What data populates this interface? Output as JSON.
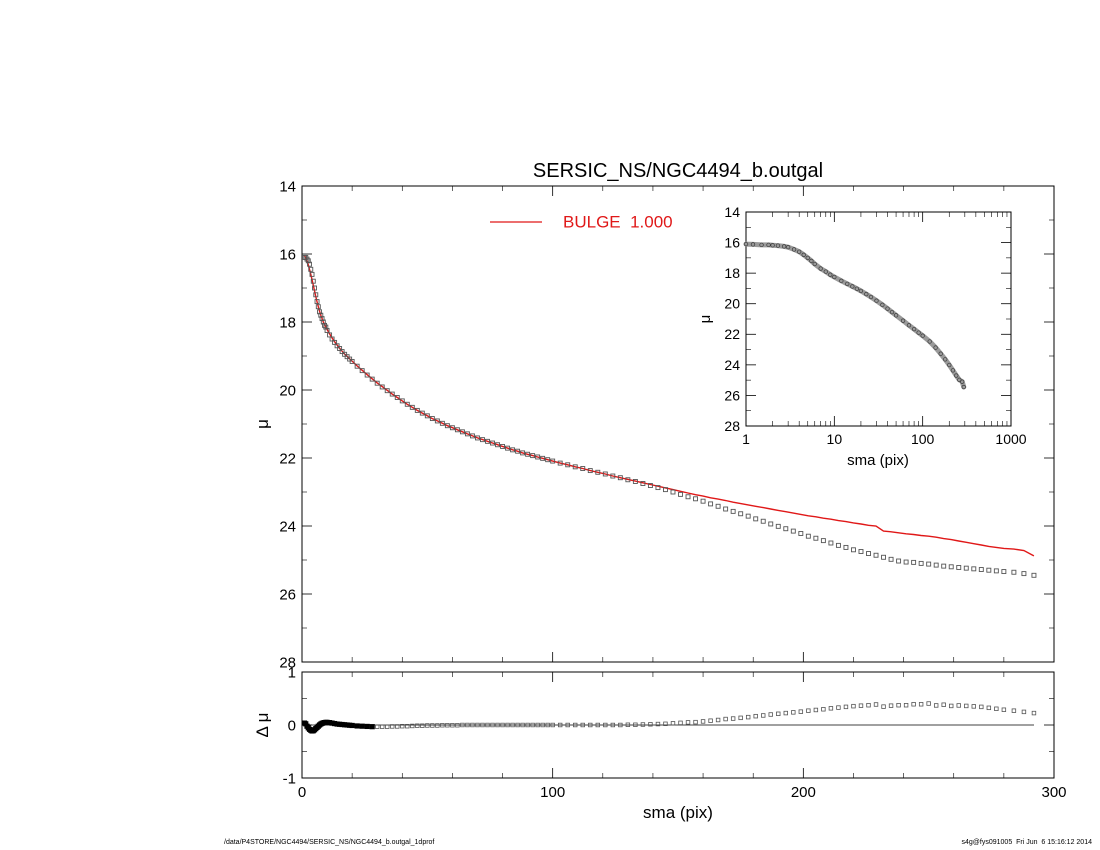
{
  "footer": {
    "left": "/data/P4STORE/NGC4494/SERSIC_NS/NGC4494_b.outgal_1dprof",
    "right": "s4g@fys091005  Fri Jun  6 15:16:12 2014"
  },
  "colors": {
    "model": "#e01818",
    "data": "#555555",
    "axis": "#000000"
  },
  "chart_data": [
    {
      "name": "main-profile",
      "type": "scatter",
      "title": "SERSIC_NS/NGC4494_b.outgal",
      "xlabel": "",
      "ylabel": "μ",
      "xlim": [
        0,
        300
      ],
      "ylim": [
        28,
        14
      ],
      "y_inverted": true,
      "xticks": [
        0,
        100,
        200,
        300
      ],
      "yticks": [
        14,
        16,
        18,
        20,
        22,
        24,
        26,
        28
      ],
      "xtick_labels": [
        "",
        "",
        "",
        ""
      ],
      "ytick_labels": [
        "14",
        "16",
        "18",
        "20",
        "22",
        "24",
        "26",
        "28"
      ],
      "legend": {
        "position": "top-center",
        "label": "BULGE  1.000",
        "color": "#e01818"
      },
      "series": [
        {
          "role": "data",
          "marker": "square",
          "x": [
            1,
            1.5,
            2,
            2.5,
            3,
            3.5,
            4,
            4.5,
            5,
            5.5,
            6,
            6.5,
            7,
            7.5,
            8,
            8.5,
            9,
            9.5,
            10,
            11,
            12,
            13,
            14,
            15,
            16,
            17,
            18,
            19,
            20,
            22,
            24,
            26,
            28,
            30,
            32,
            34,
            36,
            38,
            40,
            42,
            44,
            46,
            48,
            50,
            52,
            54,
            56,
            58,
            60,
            62,
            64,
            66,
            68,
            70,
            72,
            74,
            76,
            78,
            80,
            82,
            84,
            86,
            88,
            90,
            92,
            94,
            96,
            98,
            100,
            103,
            106,
            109,
            112,
            115,
            118,
            121,
            124,
            127,
            130,
            133,
            136,
            139,
            142,
            145,
            148,
            151,
            154,
            157,
            160,
            163,
            166,
            169,
            172,
            175,
            178,
            181,
            184,
            187,
            190,
            193,
            196,
            199,
            202,
            205,
            208,
            211,
            214,
            217,
            220,
            223,
            226,
            229,
            232,
            235,
            238,
            241,
            244,
            247,
            250,
            253,
            256,
            259,
            262,
            265,
            268,
            271,
            274,
            277,
            280,
            284,
            288,
            292
          ],
          "y": [
            16.1,
            16.1,
            16.15,
            16.2,
            16.3,
            16.45,
            16.6,
            16.8,
            17.0,
            17.2,
            17.4,
            17.55,
            17.7,
            17.8,
            17.9,
            18.0,
            18.1,
            18.15,
            18.25,
            18.38,
            18.5,
            18.6,
            18.7,
            18.78,
            18.87,
            18.95,
            19.02,
            19.09,
            19.16,
            19.3,
            19.43,
            19.56,
            19.68,
            19.8,
            19.91,
            20.02,
            20.12,
            20.22,
            20.32,
            20.42,
            20.51,
            20.6,
            20.68,
            20.76,
            20.84,
            20.91,
            20.98,
            21.05,
            21.11,
            21.17,
            21.23,
            21.29,
            21.35,
            21.41,
            21.46,
            21.51,
            21.56,
            21.61,
            21.66,
            21.71,
            21.76,
            21.8,
            21.85,
            21.89,
            21.93,
            21.97,
            22.01,
            22.05,
            22.09,
            22.15,
            22.2,
            22.26,
            22.31,
            22.37,
            22.42,
            22.47,
            22.53,
            22.58,
            22.64,
            22.69,
            22.75,
            22.81,
            22.87,
            22.93,
            23.0,
            23.07,
            23.14,
            23.2,
            23.27,
            23.35,
            23.42,
            23.5,
            23.57,
            23.64,
            23.71,
            23.79,
            23.86,
            23.94,
            24.01,
            24.08,
            24.15,
            24.22,
            24.3,
            24.36,
            24.43,
            24.5,
            24.57,
            24.63,
            24.7,
            24.75,
            24.81,
            24.86,
            24.92,
            24.98,
            25.03,
            25.06,
            25.07,
            25.1,
            25.12,
            25.15,
            25.18,
            25.2,
            25.22,
            25.24,
            25.26,
            25.28,
            25.3,
            25.32,
            25.34,
            25.36,
            25.4,
            25.45
          ]
        },
        {
          "role": "model",
          "marker": "line",
          "x": [
            1,
            1.5,
            2,
            2.5,
            3,
            3.5,
            4,
            4.5,
            5,
            5.5,
            6,
            6.5,
            7,
            7.5,
            8,
            8.5,
            9,
            9.5,
            10,
            11,
            12,
            13,
            14,
            15,
            16,
            17,
            18,
            19,
            20,
            22,
            24,
            26,
            28,
            30,
            32,
            34,
            36,
            38,
            40,
            42,
            44,
            46,
            48,
            50,
            52,
            54,
            56,
            58,
            60,
            62,
            64,
            66,
            68,
            70,
            72,
            74,
            76,
            78,
            80,
            82,
            84,
            86,
            88,
            90,
            92,
            94,
            96,
            98,
            100,
            103,
            106,
            109,
            112,
            115,
            118,
            121,
            124,
            127,
            130,
            133,
            136,
            139,
            142,
            145,
            148,
            151,
            154,
            157,
            160,
            163,
            166,
            169,
            172,
            175,
            178,
            181,
            184,
            187,
            190,
            193,
            196,
            199,
            202,
            205,
            208,
            211,
            214,
            217,
            220,
            223,
            226,
            229,
            232,
            235,
            238,
            241,
            244,
            247,
            250,
            253,
            256,
            259,
            262,
            265,
            268,
            271,
            274,
            277,
            280,
            284,
            288,
            292
          ],
          "y": [
            16.05,
            16.1,
            16.2,
            16.32,
            16.45,
            16.6,
            16.75,
            16.92,
            17.08,
            17.25,
            17.4,
            17.55,
            17.68,
            17.8,
            17.9,
            18.0,
            18.08,
            18.15,
            18.22,
            18.35,
            18.47,
            18.58,
            18.68,
            18.77,
            18.86,
            18.94,
            19.01,
            19.08,
            19.15,
            19.29,
            19.42,
            19.55,
            19.67,
            19.79,
            19.9,
            20.01,
            20.12,
            20.22,
            20.32,
            20.42,
            20.51,
            20.6,
            20.68,
            20.76,
            20.84,
            20.91,
            20.98,
            21.05,
            21.11,
            21.17,
            21.23,
            21.29,
            21.35,
            21.41,
            21.46,
            21.51,
            21.56,
            21.61,
            21.66,
            21.71,
            21.76,
            21.8,
            21.85,
            21.89,
            21.93,
            21.97,
            22.01,
            22.05,
            22.09,
            22.15,
            22.2,
            22.26,
            22.31,
            22.37,
            22.42,
            22.47,
            22.53,
            22.58,
            22.63,
            22.68,
            22.73,
            22.78,
            22.83,
            22.88,
            22.93,
            22.98,
            23.03,
            23.08,
            23.12,
            23.17,
            23.21,
            23.25,
            23.3,
            23.34,
            23.38,
            23.42,
            23.46,
            23.5,
            23.54,
            23.58,
            23.62,
            23.66,
            23.7,
            23.73,
            23.77,
            23.8,
            23.84,
            23.87,
            23.91,
            23.94,
            23.98,
            24.0,
            24.15,
            24.17,
            24.2,
            24.23,
            24.25,
            24.28,
            24.3,
            24.33,
            24.37,
            24.4,
            24.44,
            24.48,
            24.52,
            24.56,
            24.6,
            24.63,
            24.66,
            24.68,
            24.72,
            24.88
          ]
        }
      ]
    },
    {
      "name": "residual",
      "type": "scatter",
      "xlabel": "sma (pix)",
      "ylabel": "Δ μ",
      "xlim": [
        0,
        300
      ],
      "ylim": [
        -1,
        1
      ],
      "xticks": [
        0,
        100,
        200,
        300
      ],
      "yticks": [
        -1,
        0,
        1
      ],
      "xtick_labels": [
        "0",
        "100",
        "200",
        "300"
      ],
      "ytick_labels": [
        "-1",
        "0",
        "1"
      ],
      "zero_line": true,
      "series": [
        {
          "role": "residual",
          "marker": "square",
          "x": [
            1,
            1.5,
            2,
            2.5,
            3,
            3.5,
            4,
            4.5,
            5,
            5.5,
            6,
            6.5,
            7,
            7.5,
            8,
            8.5,
            9,
            9.5,
            10,
            11,
            12,
            13,
            14,
            15,
            16,
            17,
            18,
            19,
            20,
            22,
            24,
            26,
            28,
            30,
            32,
            34,
            36,
            38,
            40,
            42,
            44,
            46,
            48,
            50,
            52,
            54,
            56,
            58,
            60,
            62,
            64,
            66,
            68,
            70,
            72,
            74,
            76,
            78,
            80,
            82,
            84,
            86,
            88,
            90,
            92,
            94,
            96,
            98,
            100,
            103,
            106,
            109,
            112,
            115,
            118,
            121,
            124,
            127,
            130,
            133,
            136,
            139,
            142,
            145,
            148,
            151,
            154,
            157,
            160,
            163,
            166,
            169,
            172,
            175,
            178,
            181,
            184,
            187,
            190,
            193,
            196,
            199,
            202,
            205,
            208,
            211,
            214,
            217,
            220,
            223,
            226,
            229,
            232,
            235,
            238,
            241,
            244,
            247,
            250,
            253,
            256,
            259,
            262,
            265,
            268,
            271,
            274,
            277,
            280,
            284,
            288,
            292
          ],
          "y": [
            0.08,
            0.05,
            -0.05,
            -0.12,
            -0.18,
            -0.22,
            -0.25,
            -0.24,
            -0.2,
            -0.15,
            -0.1,
            -0.05,
            0.0,
            0.04,
            0.07,
            0.09,
            0.1,
            0.11,
            0.11,
            0.1,
            0.08,
            0.06,
            0.04,
            0.03,
            0.02,
            0.01,
            0.0,
            -0.01,
            -0.02,
            -0.04,
            -0.05,
            -0.06,
            -0.07,
            -0.07,
            -0.07,
            -0.07,
            -0.06,
            -0.06,
            -0.05,
            -0.05,
            -0.04,
            -0.03,
            -0.03,
            -0.02,
            -0.02,
            -0.02,
            -0.01,
            -0.01,
            -0.01,
            -0.01,
            0.0,
            0.0,
            0.0,
            0.0,
            0.0,
            0.0,
            0.0,
            0.0,
            0.0,
            0.0,
            0.0,
            0.0,
            0.0,
            0.0,
            0.0,
            0.0,
            0.0,
            0.0,
            0.0,
            0.0,
            0.0,
            0.0,
            0.0,
            0.0,
            0.0,
            0.0,
            0.0,
            0.0,
            0.01,
            0.01,
            0.02,
            0.03,
            0.04,
            0.05,
            0.07,
            0.09,
            0.11,
            0.12,
            0.15,
            0.18,
            0.21,
            0.25,
            0.27,
            0.3,
            0.33,
            0.37,
            0.4,
            0.44,
            0.47,
            0.5,
            0.53,
            0.56,
            0.6,
            0.63,
            0.66,
            0.7,
            0.73,
            0.76,
            0.79,
            0.81,
            0.83,
            0.86,
            0.77,
            0.81,
            0.83,
            0.83,
            0.87,
            0.87,
            0.9,
            0.82,
            0.85,
            0.8,
            0.82,
            0.8,
            0.78,
            0.76,
            0.72,
            0.68,
            0.64,
            0.6,
            0.55,
            0.5
          ]
        }
      ]
    },
    {
      "name": "inset-log-profile",
      "type": "scatter",
      "xlabel": "sma (pix)",
      "ylabel": "μ",
      "xscale": "log",
      "xlim": [
        1,
        1000
      ],
      "ylim": [
        28,
        14
      ],
      "y_inverted": true,
      "xticks": [
        1,
        10,
        100,
        1000
      ],
      "yticks": [
        14,
        16,
        18,
        20,
        22,
        24,
        26,
        28
      ],
      "xtick_labels": [
        "1",
        "10",
        "100",
        "1000"
      ],
      "ytick_labels": [
        "14",
        "16",
        "18",
        "20",
        "22",
        "24",
        "26",
        "28"
      ],
      "series": [
        {
          "role": "data",
          "marker": "circle",
          "x": [
            1,
            1.2,
            1.5,
            1.8,
            2,
            2.3,
            2.7,
            3,
            3.5,
            4,
            4.5,
            5,
            5.5,
            6,
            7,
            8,
            9,
            10,
            12,
            14,
            16,
            18,
            20,
            23,
            26,
            30,
            35,
            40,
            45,
            50,
            60,
            70,
            80,
            90,
            100,
            120,
            140,
            160,
            180,
            200,
            220,
            240,
            260,
            280,
            292
          ],
          "y": [
            16.1,
            16.12,
            16.15,
            16.15,
            16.18,
            16.2,
            16.25,
            16.3,
            16.45,
            16.6,
            16.8,
            17.0,
            17.2,
            17.4,
            17.7,
            17.9,
            18.1,
            18.25,
            18.5,
            18.7,
            18.87,
            19.02,
            19.16,
            19.37,
            19.56,
            19.8,
            20.07,
            20.32,
            20.55,
            20.76,
            21.11,
            21.41,
            21.66,
            21.89,
            22.09,
            22.47,
            22.87,
            23.27,
            23.64,
            24.01,
            24.36,
            24.7,
            24.98,
            25.1,
            25.45
          ]
        }
      ]
    }
  ]
}
